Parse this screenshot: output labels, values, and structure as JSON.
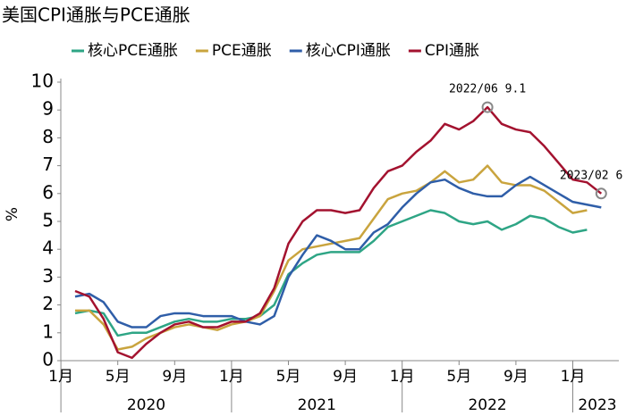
{
  "chart_data": {
    "type": "line",
    "title": "美国CPI通胀与PCE通胀",
    "y_label": "%",
    "categories": [
      "1月",
      null,
      null,
      null,
      "5月",
      null,
      null,
      null,
      "9月",
      null,
      null,
      null,
      "1月",
      null,
      null,
      null,
      "5月",
      null,
      null,
      null,
      "9月",
      null,
      null,
      null,
      "1月",
      null,
      null,
      null,
      "5月",
      null,
      null,
      null,
      "9月",
      null,
      null,
      null,
      "1月",
      null
    ],
    "year_labels": [
      "2020",
      "2021",
      "2022",
      "2023"
    ],
    "series": [
      {
        "name": "核心PCE通胀",
        "color": "#2ea585",
        "values": [
          1.7,
          1.8,
          1.7,
          0.9,
          1.0,
          1.0,
          1.2,
          1.4,
          1.5,
          1.4,
          1.4,
          1.5,
          1.5,
          1.6,
          2.0,
          3.1,
          3.5,
          3.8,
          3.9,
          3.9,
          3.9,
          4.3,
          4.8,
          5.0,
          5.2,
          5.4,
          5.3,
          5.0,
          4.9,
          5.0,
          4.7,
          4.9,
          5.2,
          5.1,
          4.8,
          4.6,
          4.7,
          null
        ]
      },
      {
        "name": "PCE通胀",
        "color": "#c9a43e",
        "values": [
          1.8,
          1.8,
          1.3,
          0.4,
          0.5,
          0.8,
          1.0,
          1.2,
          1.3,
          1.2,
          1.1,
          1.3,
          1.4,
          1.6,
          2.5,
          3.6,
          4.0,
          4.1,
          4.2,
          4.3,
          4.4,
          5.1,
          5.8,
          6.0,
          6.1,
          6.4,
          6.8,
          6.4,
          6.5,
          7.0,
          6.4,
          6.3,
          6.3,
          6.1,
          5.7,
          5.3,
          5.4,
          null
        ]
      },
      {
        "name": "核心CPI通胀",
        "color": "#2f5ea8",
        "values": [
          2.3,
          2.4,
          2.1,
          1.4,
          1.2,
          1.2,
          1.6,
          1.7,
          1.7,
          1.6,
          1.6,
          1.6,
          1.4,
          1.3,
          1.6,
          3.0,
          3.8,
          4.5,
          4.3,
          4.0,
          4.0,
          4.6,
          4.9,
          5.5,
          6.0,
          6.4,
          6.5,
          6.2,
          6.0,
          5.9,
          5.9,
          6.3,
          6.6,
          6.3,
          6.0,
          5.7,
          5.6,
          5.5
        ]
      },
      {
        "name": "CPI通胀",
        "color": "#a3122f",
        "values": [
          2.5,
          2.3,
          1.5,
          0.3,
          0.1,
          0.6,
          1.0,
          1.3,
          1.4,
          1.2,
          1.2,
          1.4,
          1.4,
          1.7,
          2.6,
          4.2,
          5.0,
          5.4,
          5.4,
          5.3,
          5.4,
          6.2,
          6.8,
          7.0,
          7.5,
          7.9,
          8.5,
          8.3,
          8.6,
          9.1,
          8.5,
          8.3,
          8.2,
          7.7,
          7.1,
          6.5,
          6.4,
          6.0
        ]
      }
    ],
    "annotations": [
      "2022/06 9.1",
      "2023/02 6"
    ],
    "ylim": [
      0,
      10
    ],
    "yticks": [
      0,
      1,
      2,
      3,
      4,
      5,
      6,
      7,
      8,
      9,
      10
    ],
    "grid": false,
    "legend": "top"
  }
}
